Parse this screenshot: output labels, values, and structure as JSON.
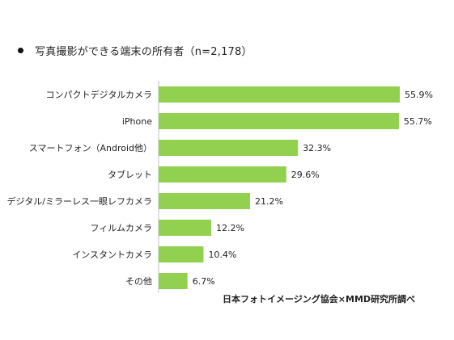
{
  "title": "写真撮影ができる端末の所有者（n=2,178）",
  "source": "日本フォトイメージング協会×MMD研究所調べ",
  "bar_color": "#92d050",
  "chart_data": {
    "type": "bar",
    "orientation": "horizontal",
    "title": "写真撮影ができる端末の所有者（n=2,178）",
    "categories": [
      "コンパクトデジタルカメラ",
      "iPhone",
      "スマートフォン（Android他）",
      "タブレット",
      "デジタル/ミラーレス一眼レフカメラ",
      "フィルムカメラ",
      "インスタントカメラ",
      "その他"
    ],
    "values": [
      55.9,
      55.7,
      32.3,
      29.6,
      21.2,
      12.2,
      10.4,
      6.7
    ],
    "value_labels": [
      "55.9%",
      "55.7%",
      "32.3%",
      "29.6%",
      "21.2%",
      "12.2%",
      "10.4%",
      "6.7%"
    ],
    "xlim": [
      0,
      55.9
    ],
    "grid": false,
    "legend": "none"
  }
}
